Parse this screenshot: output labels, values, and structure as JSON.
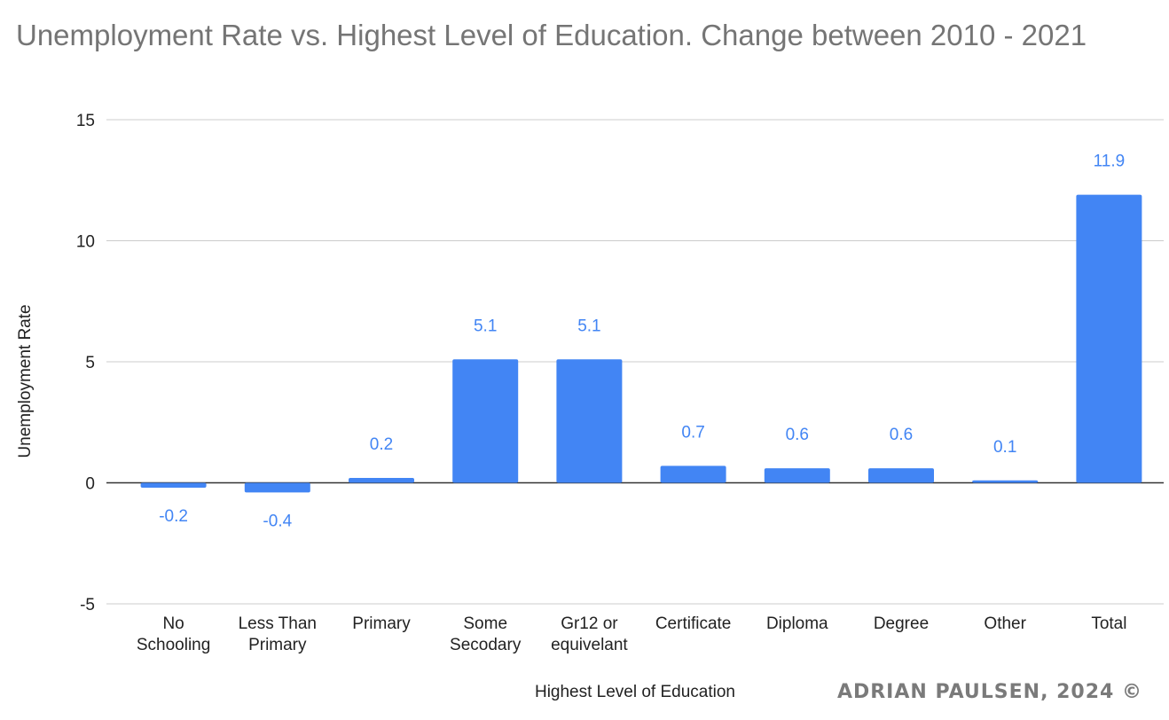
{
  "chart_data": {
    "type": "bar",
    "title": "Unemployment Rate vs. Highest Level of Education. Change between 2010 - 2021",
    "xlabel": "Highest Level of Education",
    "ylabel": "Unemployment Rate",
    "ylim": [
      -5,
      15
    ],
    "yticks": [
      -5,
      0,
      5,
      10,
      15
    ],
    "grid": true,
    "legend": "none",
    "bar_color": "#4285f4",
    "categories": [
      [
        "No",
        "Schooling"
      ],
      [
        "Less Than",
        "Primary"
      ],
      [
        "Primary"
      ],
      [
        "Some",
        "Secodary"
      ],
      [
        "Gr12 or",
        "equivelant"
      ],
      [
        "Certificate"
      ],
      [
        "Diploma"
      ],
      [
        "Degree"
      ],
      [
        "Other"
      ],
      [
        "Total"
      ]
    ],
    "values": [
      -0.2,
      -0.4,
      0.2,
      5.1,
      5.1,
      0.7,
      0.6,
      0.6,
      0.1,
      11.9
    ],
    "data_labels": [
      "-0.2",
      "-0.4",
      "0.2",
      "5.1",
      "5.1",
      "0.7",
      "0.6",
      "0.6",
      "0.1",
      "11.9"
    ]
  },
  "watermark": "ADRIAN PAULSEN, 2024 ©"
}
